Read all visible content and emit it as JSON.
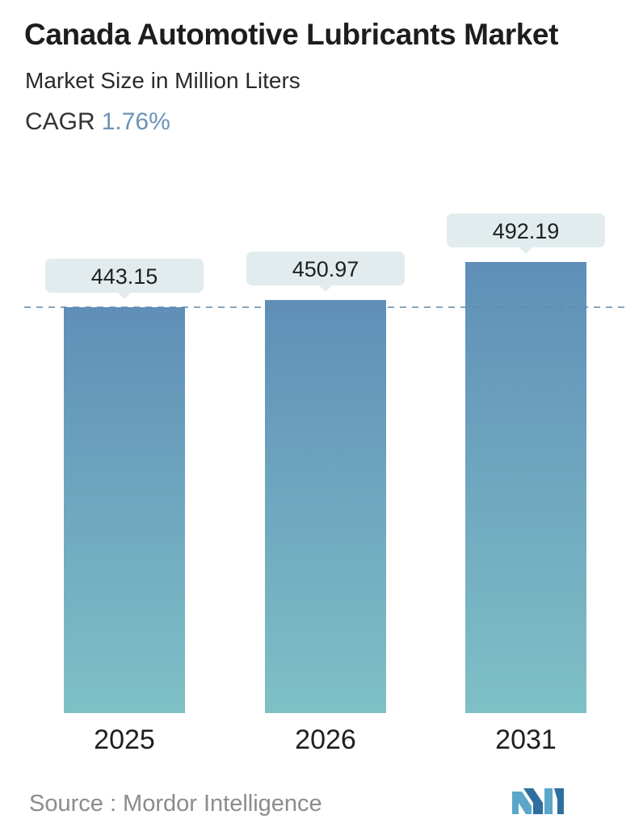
{
  "header": {
    "title": "Canada Automotive Lubricants Market",
    "subtitle": "Market Size in Million Liters",
    "cagr_label": "CAGR",
    "cagr_value": "1.76%"
  },
  "chart_data": {
    "type": "bar",
    "categories": [
      "2025",
      "2026",
      "2031"
    ],
    "values": [
      443.15,
      450.97,
      492.19
    ],
    "value_labels": [
      "443.15",
      "450.97",
      "492.19"
    ],
    "reference_line": "dashed line at the 2025 value",
    "grid": false,
    "colors": {
      "bar_top": "#5f8fb8",
      "bar_bottom": "#7fc0c6",
      "label_bg": "#e2ecee",
      "reference_line": "#5f8aa8"
    }
  },
  "footer": {
    "source": "Source :  Mordor Intelligence",
    "logo": "mordor-intelligence-logo"
  }
}
